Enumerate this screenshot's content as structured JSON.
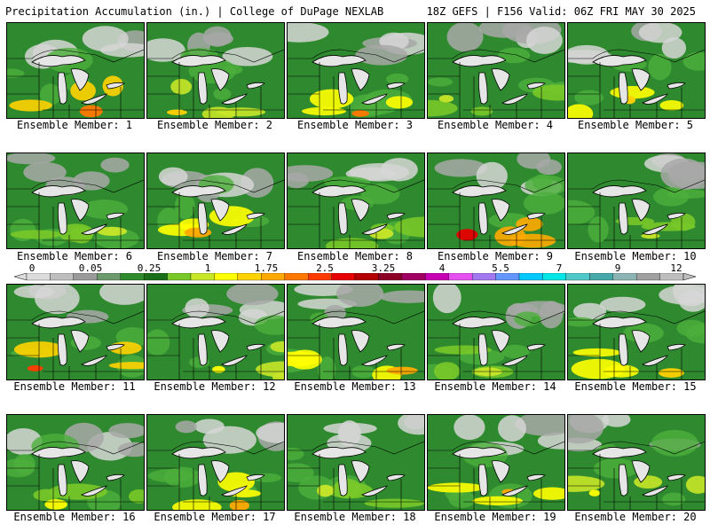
{
  "header": {
    "left_title": "Precipitation Accumulation (in.) | College of DuPage NEXLAB",
    "right_title": "18Z GEFS | F156 Valid: 06Z FRI MAY 30 2025"
  },
  "legend": {
    "labels": [
      "0",
      "0.05",
      "0.25",
      "1",
      "1.75",
      "2.5",
      "3.25",
      "4",
      "5.5",
      "7",
      "9",
      "12"
    ],
    "colors": [
      "#dcdcdc",
      "#bebebe",
      "#9a9a9a",
      "#6c9a6c",
      "#2e8b2e",
      "#1a6e1a",
      "#78c828",
      "#c8e628",
      "#ffff00",
      "#ffd200",
      "#ffaa00",
      "#ff7800",
      "#ff3c00",
      "#e60000",
      "#b40000",
      "#8c0028",
      "#a00064",
      "#c800b4",
      "#e650f0",
      "#a078f0",
      "#6496ff",
      "#00c8ff",
      "#00e6e6",
      "#50c8c8",
      "#46aaaa",
      "#8cb4b4",
      "#a0a0a0",
      "#bebebe"
    ]
  },
  "panels": [
    {
      "label": "Ensemble Member: 1",
      "wet": "#ffd200",
      "wetter": "#ff7800"
    },
    {
      "label": "Ensemble Member: 2",
      "wet": "#c8e628",
      "wetter": "#ffd200"
    },
    {
      "label": "Ensemble Member: 3",
      "wet": "#ffff00",
      "wetter": "#ff7800"
    },
    {
      "label": "Ensemble Member: 4",
      "wet": "#78c828",
      "wetter": "#c8e628"
    },
    {
      "label": "Ensemble Member: 5",
      "wet": "#ffff00",
      "wetter": "#ffd200"
    },
    {
      "label": "Ensemble Member: 6",
      "wet": "#78c828",
      "wetter": "#c8e628"
    },
    {
      "label": "Ensemble Member: 7",
      "wet": "#ffff00",
      "wetter": "#ffaa00"
    },
    {
      "label": "Ensemble Member: 8",
      "wet": "#78c828",
      "wetter": "#c8e628"
    },
    {
      "label": "Ensemble Member: 9",
      "wet": "#ffaa00",
      "wetter": "#e60000"
    },
    {
      "label": "Ensemble Member: 10",
      "wet": "#78c828",
      "wetter": "#c8e628"
    },
    {
      "label": "Ensemble Member: 11",
      "wet": "#ffd200",
      "wetter": "#ff3c00"
    },
    {
      "label": "Ensemble Member: 12",
      "wet": "#c8e628",
      "wetter": "#ffff00"
    },
    {
      "label": "Ensemble Member: 13",
      "wet": "#ffff00",
      "wetter": "#ffaa00"
    },
    {
      "label": "Ensemble Member: 14",
      "wet": "#78c828",
      "wetter": "#c8e628"
    },
    {
      "label": "Ensemble Member: 15",
      "wet": "#ffff00",
      "wetter": "#ffd200"
    },
    {
      "label": "Ensemble Member: 16",
      "wet": "#78c828",
      "wetter": "#ffff00"
    },
    {
      "label": "Ensemble Member: 17",
      "wet": "#ffff00",
      "wetter": "#ffaa00"
    },
    {
      "label": "Ensemble Member: 18",
      "wet": "#78c828",
      "wetter": "#c8e628"
    },
    {
      "label": "Ensemble Member: 19",
      "wet": "#ffff00",
      "wetter": "#ffaa00"
    },
    {
      "label": "Ensemble Member: 20",
      "wet": "#c8e628",
      "wetter": "#ffff00"
    }
  ],
  "colors": {
    "background_green": "#2f8a2f",
    "light_green": "#4caf3c",
    "gray": "#a8a8a8",
    "light_gray": "#d6d6d6",
    "lake": "#e6e6e6"
  }
}
